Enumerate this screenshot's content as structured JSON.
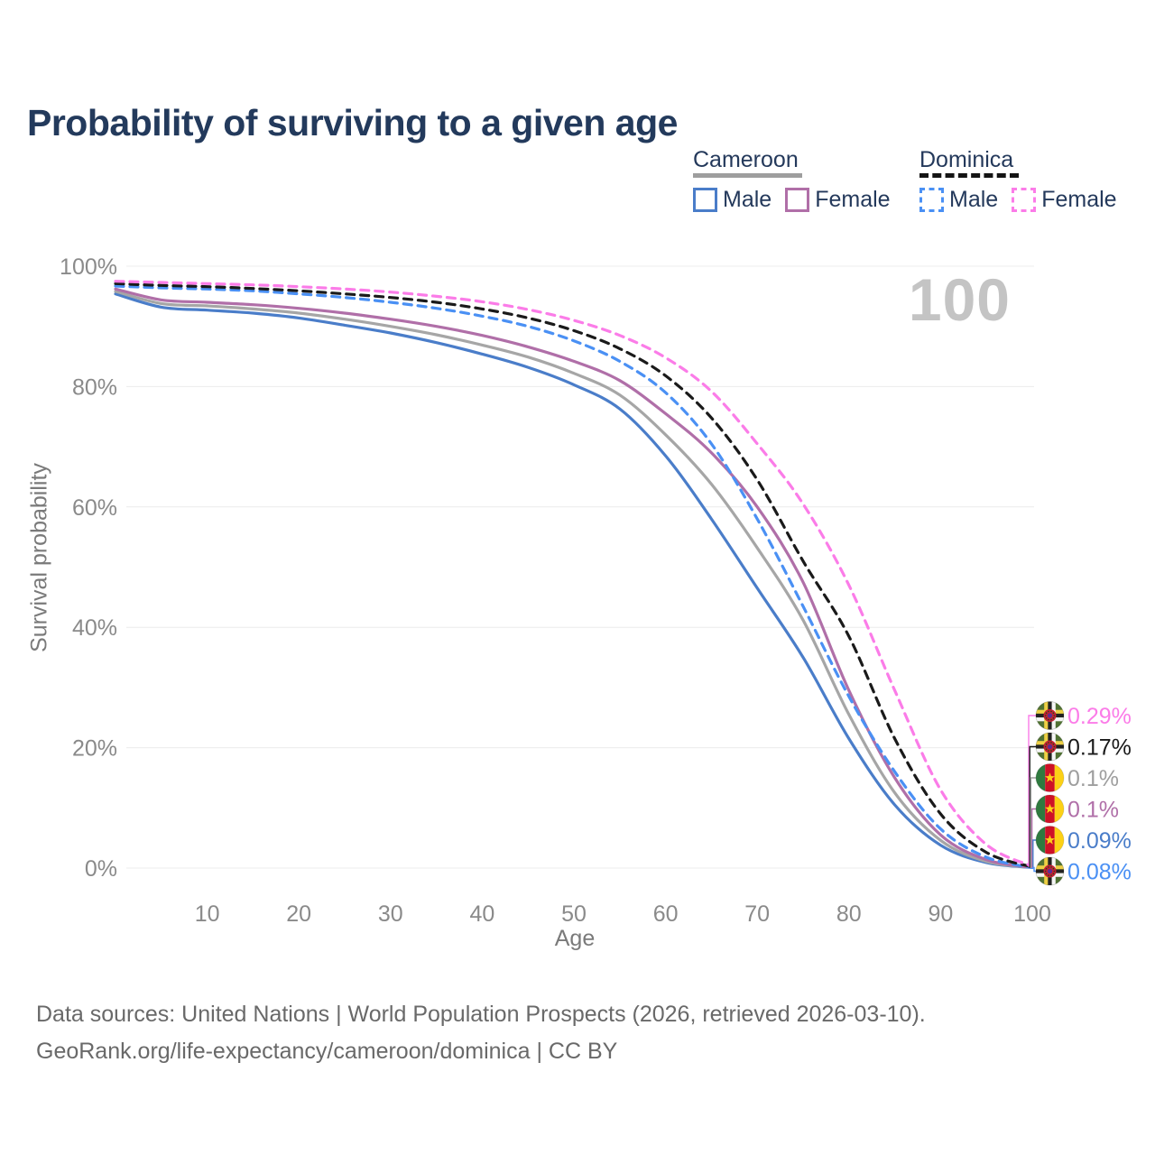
{
  "title": "Probability of surviving to a given age",
  "watermark": "100",
  "legend": {
    "groups": [
      {
        "label": "Cameroon",
        "line_style": "solid",
        "underline_color": "#9e9e9e",
        "items": [
          {
            "label": "Male",
            "color": "#4a7dc9"
          },
          {
            "label": "Female",
            "color": "#b06fa8"
          }
        ]
      },
      {
        "label": "Dominica",
        "line_style": "dashed",
        "underline_color": "#141414",
        "items": [
          {
            "label": "Male",
            "color": "#4a90f4"
          },
          {
            "label": "Female",
            "color": "#fb7ce8"
          }
        ]
      }
    ]
  },
  "chart_data": {
    "type": "line",
    "title": "Probability of surviving to a given age",
    "xlabel": "Age",
    "ylabel": "Survival probability",
    "xlim": [
      0,
      100
    ],
    "ylim": [
      0,
      100
    ],
    "grid": true,
    "legend_position": "top-right",
    "xticks": [
      10,
      20,
      30,
      40,
      50,
      60,
      70,
      80,
      90,
      100
    ],
    "yticks": [
      "0%",
      "20%",
      "40%",
      "60%",
      "80%",
      "100%"
    ],
    "x": [
      0,
      5,
      10,
      15,
      20,
      25,
      30,
      35,
      40,
      45,
      50,
      55,
      60,
      65,
      70,
      75,
      80,
      85,
      90,
      95,
      100
    ],
    "series": [
      {
        "id": "cameroon_male",
        "name": "Cameroon Male",
        "country": "Cameroon",
        "sex": "Male",
        "color": "#4a7dc9",
        "dash": false,
        "values": [
          95.4,
          93.2,
          92.7,
          92.2,
          91.4,
          90.2,
          88.9,
          87.3,
          85.4,
          83.2,
          80.3,
          76.3,
          68.5,
          58.0,
          46.5,
          35.0,
          21.5,
          10.5,
          3.8,
          0.9,
          0.09
        ]
      },
      {
        "id": "cameroon_both",
        "name": "Cameroon (both sexes)",
        "country": "Cameroon",
        "sex": "Both",
        "color": "#a6a6a6",
        "dash": false,
        "values": [
          95.8,
          93.8,
          93.4,
          92.9,
          92.2,
          91.2,
          90.0,
          88.6,
          86.9,
          84.9,
          82.2,
          78.6,
          72.0,
          63.8,
          53.2,
          41.2,
          25.5,
          12.5,
          4.6,
          1.1,
          0.1
        ]
      },
      {
        "id": "cameroon_female",
        "name": "Cameroon Female",
        "country": "Cameroon",
        "sex": "Female",
        "color": "#b06fa8",
        "dash": false,
        "values": [
          96.2,
          94.4,
          94.0,
          93.6,
          93.0,
          92.2,
          91.2,
          90.0,
          88.5,
          86.6,
          84.2,
          81.0,
          75.5,
          69.0,
          60.0,
          47.5,
          29.5,
          15.0,
          5.5,
          1.4,
          0.1
        ]
      },
      {
        "id": "dominica_male",
        "name": "Dominica Male",
        "country": "Dominica",
        "sex": "Male",
        "color": "#4a90f4",
        "dash": true,
        "values": [
          96.7,
          96.4,
          96.2,
          95.9,
          95.4,
          94.8,
          94.0,
          93.0,
          91.7,
          90.0,
          87.6,
          84.2,
          79.0,
          70.5,
          58.0,
          43.5,
          28.5,
          16.0,
          6.5,
          1.8,
          0.08
        ]
      },
      {
        "id": "dominica_both",
        "name": "Dominica (both sexes)",
        "country": "Dominica",
        "sex": "Both",
        "color": "#1a1a1a",
        "dash": true,
        "values": [
          97.1,
          96.8,
          96.6,
          96.3,
          95.9,
          95.4,
          94.8,
          94.0,
          92.9,
          91.4,
          89.3,
          86.3,
          81.8,
          74.8,
          64.5,
          51.0,
          38.5,
          21.5,
          9.0,
          2.6,
          0.17
        ]
      },
      {
        "id": "dominica_female",
        "name": "Dominica Female",
        "country": "Dominica",
        "sex": "Female",
        "color": "#fb7ce8",
        "dash": true,
        "values": [
          97.5,
          97.3,
          97.1,
          96.9,
          96.6,
          96.2,
          95.7,
          95.0,
          94.1,
          92.8,
          91.0,
          88.5,
          84.8,
          79.2,
          70.5,
          60.5,
          47.0,
          29.5,
          13.0,
          3.9,
          0.29
        ]
      }
    ]
  },
  "end_labels": [
    {
      "series": "dominica_female",
      "value": "0.29%",
      "color": "#fb7ce8",
      "flag": "dominica"
    },
    {
      "series": "dominica_both",
      "value": "0.17%",
      "color": "#1a1a1a",
      "flag": "dominica"
    },
    {
      "series": "cameroon_both",
      "value": "0.1%",
      "color": "#9e9e9e",
      "flag": "cameroon"
    },
    {
      "series": "cameroon_female",
      "value": "0.1%",
      "color": "#b06fa8",
      "flag": "cameroon"
    },
    {
      "series": "cameroon_male",
      "value": "0.09%",
      "color": "#4a7dc9",
      "flag": "cameroon"
    },
    {
      "series": "dominica_male",
      "value": "0.08%",
      "color": "#4a90f4",
      "flag": "dominica"
    }
  ],
  "flag_colors": {
    "cameroon": {
      "green": "#2f7a3f",
      "red": "#ce1126",
      "yellow": "#fcd116",
      "star": "#fcd116"
    },
    "dominica": {
      "green": "#507233",
      "cross_yellow": "#eecf44",
      "cross_black": "#222222",
      "cross_white": "#f5f5f5",
      "disc_red": "#c41f33",
      "parrot": "#5c2d91"
    }
  },
  "footer": {
    "line1": "Data sources: United Nations | World Population Prospects (2026, retrieved 2026-03-10).",
    "line2": "GeoRank.org/life-expectancy/cameroon/dominica | CC BY"
  }
}
